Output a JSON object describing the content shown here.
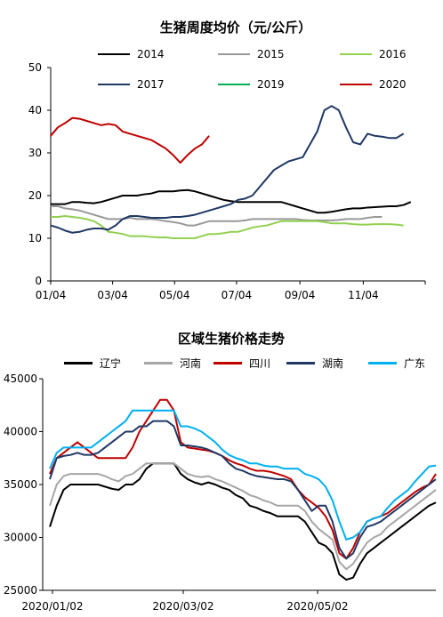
{
  "chart_data": [
    {
      "type": "line",
      "title": "生猪周度均价（元/公斤）",
      "xlabel": "",
      "ylabel": "",
      "x_ticks": [
        "01/04",
        "03/04",
        "05/04",
        "07/04",
        "09/04",
        "11/04"
      ],
      "ylim": [
        0,
        50
      ],
      "y_ticks": [
        "0",
        "10",
        "20",
        "30",
        "40",
        "50"
      ],
      "grid": false,
      "legend_position": "top",
      "x_unit": "week",
      "series": [
        {
          "name": "2014",
          "color": "#000000",
          "values": [
            18,
            18,
            18,
            18.5,
            18.5,
            18.3,
            18.2,
            18.5,
            19,
            19.5,
            20,
            20,
            20,
            20.3,
            20.5,
            21,
            21,
            21,
            21.2,
            21.3,
            21,
            20.5,
            20,
            19.5,
            19,
            18.7,
            18.5,
            18.5,
            18.5,
            18.5,
            18.5,
            18.5,
            18.5,
            18,
            17.5,
            17,
            16.5,
            16,
            16,
            16.2,
            16.5,
            16.8,
            17,
            17,
            17.2,
            17.3,
            17.4,
            17.5,
            17.5,
            17.8,
            18.5
          ]
        },
        {
          "name": "2015",
          "color": "#999999",
          "values": [
            17.5,
            17.5,
            17,
            16.8,
            16.5,
            16,
            15.5,
            15,
            14.5,
            14.5,
            14.5,
            14.8,
            14.5,
            14.5,
            14.5,
            14.3,
            14,
            13.8,
            13.5,
            13,
            13,
            13.5,
            14,
            14,
            14,
            14,
            14,
            14.2,
            14.5,
            14.5,
            14.5,
            14.5,
            14.5,
            14.5,
            14.5,
            14.3,
            14.2,
            14.2,
            14.2,
            14.2,
            14.3,
            14.5,
            14.5,
            14.5,
            14.8,
            15,
            15
          ]
        },
        {
          "name": "2016",
          "color": "#92d050",
          "values": [
            15,
            15,
            15.2,
            15,
            14.8,
            14.5,
            14,
            13,
            11.5,
            11.3,
            11,
            10.5,
            10.5,
            10.5,
            10.3,
            10.2,
            10.2,
            10,
            10,
            10,
            10,
            10.5,
            11,
            11,
            11.2,
            11.5,
            11.5,
            12,
            12.5,
            12.8,
            13,
            13.5,
            14,
            14,
            14,
            14,
            14,
            14,
            13.8,
            13.5,
            13.5,
            13.5,
            13.3,
            13.2,
            13.2,
            13.3,
            13.3,
            13.3,
            13.2,
            13
          ]
        },
        {
          "name": "2017",
          "color": "#1f3864",
          "values": [
            13,
            12.5,
            11.8,
            11.3,
            11.5,
            12,
            12.3,
            12.3,
            12,
            13,
            14.5,
            15.2,
            15.2,
            15,
            14.8,
            14.8,
            14.8,
            15,
            15,
            15.2,
            15.5,
            16,
            16.5,
            17,
            17.5,
            18,
            19,
            19.3,
            20,
            22,
            24,
            26,
            27,
            28,
            28.5,
            29,
            32,
            35,
            40,
            41,
            40,
            36,
            32.5,
            32,
            34.5,
            34,
            33.8,
            33.5,
            33.5,
            34.5
          ]
        },
        {
          "name": "2019",
          "color": "#00b050",
          "values": []
        },
        {
          "name": "2020",
          "color": "#c00000",
          "values": [
            34,
            36,
            37,
            38.2,
            38,
            37.5,
            37,
            36.5,
            36.8,
            36.5,
            35,
            34.5,
            34,
            33.5,
            33,
            32,
            31,
            29.5,
            27.7,
            29.5,
            31,
            32,
            34
          ]
        }
      ]
    },
    {
      "type": "line",
      "title": "区域生猪价格走势",
      "xlabel": "",
      "ylabel": "",
      "x_ticks": [
        "2020/01/02",
        "2020/03/02",
        "2020/05/02"
      ],
      "ylim": [
        25000,
        45000
      ],
      "y_ticks": [
        "25000",
        "30000",
        "35000",
        "40000",
        "45000"
      ],
      "grid": false,
      "legend_position": "top",
      "series": [
        {
          "name": "辽宁",
          "color": "#000000",
          "values": [
            31000,
            33000,
            34500,
            35000,
            35000,
            35000,
            35000,
            35000,
            34800,
            34600,
            34500,
            35000,
            35000,
            35500,
            36500,
            37000,
            37000,
            37000,
            37000,
            36000,
            35500,
            35200,
            35000,
            35200,
            35000,
            34700,
            34500,
            34000,
            33700,
            33000,
            32800,
            32500,
            32300,
            32000,
            32000,
            32000,
            32000,
            31500,
            30500,
            29500,
            29200,
            28500,
            26500,
            26000,
            26200,
            27500,
            28500,
            29000,
            29500,
            30000,
            30500,
            31000,
            31500,
            32000,
            32500,
            33000,
            33300
          ]
        },
        {
          "name": "河南",
          "color": "#a6a6a6",
          "values": [
            33000,
            35000,
            35800,
            36000,
            36000,
            36000,
            36000,
            36000,
            35800,
            35500,
            35300,
            35800,
            36000,
            36500,
            37000,
            37000,
            37000,
            37000,
            37000,
            36500,
            36000,
            35800,
            35700,
            35800,
            35500,
            35300,
            35000,
            34700,
            34400,
            34000,
            33800,
            33500,
            33300,
            33000,
            33000,
            33000,
            33000,
            32500,
            31500,
            30800,
            30300,
            29800,
            27700,
            27000,
            27500,
            28500,
            29500,
            30000,
            30300,
            31000,
            31500,
            32000,
            32500,
            33000,
            33500,
            34000,
            34500
          ]
        },
        {
          "name": "四川",
          "color": "#c00000",
          "values": [
            36000,
            37500,
            38000,
            38500,
            39000,
            38500,
            38000,
            37500,
            37500,
            37500,
            37500,
            37500,
            38500,
            40000,
            41000,
            42000,
            43000,
            43000,
            42000,
            39000,
            38500,
            38400,
            38300,
            38200,
            38000,
            37700,
            37300,
            37000,
            36800,
            36500,
            36300,
            36300,
            36200,
            36000,
            35800,
            35500,
            34500,
            33800,
            33300,
            32800,
            32000,
            30700,
            28500,
            28000,
            29000,
            30500,
            31500,
            31800,
            32000,
            32300,
            32800,
            33300,
            33800,
            34300,
            34700,
            35000,
            36000
          ]
        },
        {
          "name": "湖南",
          "color": "#1f3864",
          "values": [
            35500,
            37500,
            37700,
            37800,
            38000,
            37800,
            37800,
            38000,
            38500,
            39000,
            39500,
            40000,
            40000,
            40500,
            40500,
            41000,
            41000,
            41000,
            40500,
            38700,
            38700,
            38600,
            38500,
            38300,
            38000,
            37700,
            37000,
            36500,
            36300,
            36000,
            35800,
            35700,
            35600,
            35500,
            35500,
            35300,
            34500,
            33500,
            32500,
            33000,
            33000,
            31500,
            29000,
            28000,
            28500,
            30000,
            31000,
            31200,
            31500,
            32000,
            32500,
            33000,
            33500,
            34000,
            34500,
            35000,
            35500
          ]
        },
        {
          "name": "广东",
          "color": "#00b0f0",
          "values": [
            36500,
            38000,
            38500,
            38500,
            38500,
            38500,
            38500,
            39000,
            39500,
            40000,
            40500,
            41000,
            42000,
            42000,
            42000,
            42000,
            42000,
            42000,
            42000,
            40500,
            40500,
            40300,
            40000,
            39500,
            39000,
            38300,
            37800,
            37500,
            37300,
            37000,
            37000,
            36800,
            36700,
            36700,
            36500,
            36500,
            36500,
            36000,
            35800,
            35500,
            34800,
            33500,
            31500,
            29800,
            30000,
            30500,
            31500,
            31800,
            32000,
            32800,
            33500,
            34000,
            34500,
            35300,
            36000,
            36700,
            36800
          ]
        }
      ]
    }
  ]
}
